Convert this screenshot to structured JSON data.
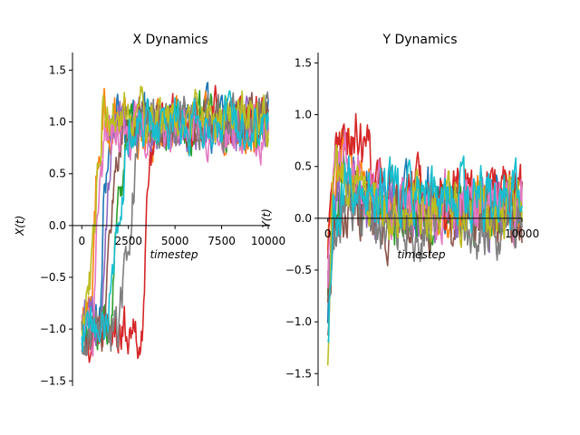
{
  "chart_data": [
    {
      "type": "line",
      "title": "X Dynamics",
      "xlabel": "timestep",
      "ylabel": "X(t)",
      "xlim": [
        -500,
        10000
      ],
      "ylim": [
        -1.55,
        1.67
      ],
      "x_ticks": [
        0,
        2500,
        5000,
        7500,
        10000
      ],
      "x_tick_labels": [
        "0",
        "2500",
        "5000",
        "7500",
        "10000"
      ],
      "y_ticks": [
        -1.5,
        -1.0,
        -0.5,
        0.0,
        0.5,
        1.0,
        1.5
      ],
      "y_tick_labels": [
        "−1.5",
        "−1.0",
        "−0.5",
        "0.0",
        "0.5",
        "1.0",
        "1.5"
      ],
      "grid": false,
      "n_points": 10000,
      "series": [
        {
          "color": "#1f77b4",
          "values": [
            [
              0,
              -1.0
            ],
            [
              1000,
              -0.95
            ],
            [
              1200,
              0.3
            ],
            [
              1600,
              1.0
            ],
            [
              3000,
              1.05
            ],
            [
              5000,
              1.0
            ],
            [
              7500,
              1.0
            ],
            [
              10000,
              1.0
            ]
          ]
        },
        {
          "color": "#ff7f0e",
          "values": [
            [
              0,
              -0.9
            ],
            [
              500,
              -0.8
            ],
            [
              800,
              0.5
            ],
            [
              1200,
              1.05
            ],
            [
              3000,
              0.95
            ],
            [
              5000,
              0.9
            ],
            [
              7500,
              0.95
            ],
            [
              10000,
              0.9
            ]
          ]
        },
        {
          "color": "#2ca02c",
          "values": [
            [
              0,
              -1.05
            ],
            [
              1500,
              -1.0
            ],
            [
              2000,
              0.2
            ],
            [
              2400,
              0.95
            ],
            [
              4000,
              1.0
            ],
            [
              6000,
              0.95
            ],
            [
              8000,
              1.0
            ],
            [
              10000,
              0.95
            ]
          ]
        },
        {
          "color": "#d62728",
          "values": [
            [
              0,
              -1.1
            ],
            [
              2500,
              -1.0
            ],
            [
              3300,
              -1.05
            ],
            [
              3600,
              0.6
            ],
            [
              4000,
              1.0
            ],
            [
              6000,
              1.0
            ],
            [
              8000,
              1.05
            ],
            [
              10000,
              1.0
            ]
          ]
        },
        {
          "color": "#9467bd",
          "values": [
            [
              0,
              -0.95
            ],
            [
              1000,
              -0.9
            ],
            [
              1400,
              0.4
            ],
            [
              1800,
              1.0
            ],
            [
              4000,
              0.95
            ],
            [
              6000,
              1.0
            ],
            [
              8000,
              0.95
            ],
            [
              10000,
              1.0
            ]
          ]
        },
        {
          "color": "#8c564b",
          "values": [
            [
              0,
              -1.0
            ],
            [
              1200,
              -0.95
            ],
            [
              1700,
              0.5
            ],
            [
              2200,
              1.05
            ],
            [
              4000,
              1.0
            ],
            [
              6000,
              1.0
            ],
            [
              8000,
              1.0
            ],
            [
              10000,
              1.05
            ]
          ]
        },
        {
          "color": "#e377c2",
          "values": [
            [
              0,
              -0.85
            ],
            [
              600,
              -0.9
            ],
            [
              900,
              0.2
            ],
            [
              1300,
              0.95
            ],
            [
              4000,
              0.9
            ],
            [
              6000,
              0.95
            ],
            [
              8000,
              0.9
            ],
            [
              10000,
              0.85
            ]
          ]
        },
        {
          "color": "#7f7f7f",
          "values": [
            [
              0,
              -1.05
            ],
            [
              2000,
              -1.0
            ],
            [
              2700,
              0.2
            ],
            [
              3100,
              1.0
            ],
            [
              5000,
              1.0
            ],
            [
              7000,
              1.0
            ],
            [
              9000,
              1.05
            ],
            [
              10000,
              1.0
            ]
          ]
        },
        {
          "color": "#bcbd22",
          "values": [
            [
              0,
              -0.9
            ],
            [
              500,
              -0.5
            ],
            [
              800,
              0.4
            ],
            [
              1100,
              1.1
            ],
            [
              3000,
              1.05
            ],
            [
              5000,
              1.05
            ],
            [
              7500,
              1.05
            ],
            [
              10000,
              1.0
            ]
          ]
        },
        {
          "color": "#17becf",
          "values": [
            [
              0,
              -1.0
            ],
            [
              1300,
              -1.0
            ],
            [
              1900,
              0.0
            ],
            [
              2500,
              0.9
            ],
            [
              5000,
              1.0
            ],
            [
              7500,
              1.0
            ],
            [
              10000,
              1.0
            ]
          ]
        }
      ]
    },
    {
      "type": "line",
      "title": "Y Dynamics",
      "xlabel": "timestep",
      "ylabel": "Y(t)",
      "xlim": [
        -500,
        10000
      ],
      "ylim": [
        -1.62,
        1.6
      ],
      "x_ticks": [
        0,
        10000
      ],
      "x_tick_labels": [
        "0",
        "10000"
      ],
      "y_ticks": [
        -1.5,
        -1.0,
        -0.5,
        0.0,
        0.5,
        1.0,
        1.5
      ],
      "y_tick_labels": [
        "−1.5",
        "−1.0",
        "−0.5",
        "0.0",
        "0.5",
        "1.0",
        "1.5"
      ],
      "grid": false,
      "n_points": 10000,
      "series": [
        {
          "color": "#1f77b4",
          "values": [
            [
              0,
              -0.8
            ],
            [
              300,
              0.3
            ],
            [
              800,
              0.5
            ],
            [
              2000,
              0.3
            ],
            [
              4000,
              0.15
            ],
            [
              6000,
              0.2
            ],
            [
              8000,
              0.25
            ],
            [
              10000,
              0.2
            ]
          ]
        },
        {
          "color": "#ff7f0e",
          "values": [
            [
              0,
              -0.5
            ],
            [
              400,
              0.6
            ],
            [
              900,
              0.8
            ],
            [
              2000,
              0.3
            ],
            [
              4000,
              0.1
            ],
            [
              6000,
              0.1
            ],
            [
              8000,
              0.15
            ],
            [
              10000,
              0.2
            ]
          ]
        },
        {
          "color": "#2ca02c",
          "values": [
            [
              0,
              -0.6
            ],
            [
              300,
              0.2
            ],
            [
              1000,
              0.3
            ],
            [
              3000,
              0.05
            ],
            [
              5000,
              0.0
            ],
            [
              7000,
              0.05
            ],
            [
              10000,
              0.05
            ]
          ]
        },
        {
          "color": "#d62728",
          "values": [
            [
              0,
              -0.4
            ],
            [
              500,
              0.6
            ],
            [
              1500,
              0.8
            ],
            [
              2500,
              0.4
            ],
            [
              4000,
              0.2
            ],
            [
              6000,
              0.2
            ],
            [
              8000,
              0.2
            ],
            [
              10000,
              0.25
            ]
          ]
        },
        {
          "color": "#9467bd",
          "values": [
            [
              0,
              -0.7
            ],
            [
              300,
              0.1
            ],
            [
              1000,
              0.2
            ],
            [
              3000,
              0.1
            ],
            [
              6000,
              0.05
            ],
            [
              10000,
              0.1
            ]
          ]
        },
        {
          "color": "#8c564b",
          "values": [
            [
              0,
              -0.9
            ],
            [
              300,
              0.0
            ],
            [
              1200,
              0.2
            ],
            [
              3000,
              0.0
            ],
            [
              6000,
              0.0
            ],
            [
              10000,
              0.0
            ]
          ]
        },
        {
          "color": "#e377c2",
          "values": [
            [
              0,
              -0.5
            ],
            [
              300,
              0.6
            ],
            [
              1000,
              0.6
            ],
            [
              2500,
              0.2
            ],
            [
              5000,
              0.1
            ],
            [
              8000,
              0.15
            ],
            [
              10000,
              0.2
            ]
          ]
        },
        {
          "color": "#7f7f7f",
          "values": [
            [
              0,
              -1.0
            ],
            [
              300,
              -0.1
            ],
            [
              1200,
              0.1
            ],
            [
              3000,
              -0.1
            ],
            [
              6000,
              -0.05
            ],
            [
              10000,
              -0.05
            ]
          ]
        },
        {
          "color": "#bcbd22",
          "values": [
            [
              0,
              -1.4
            ],
            [
              300,
              0.4
            ],
            [
              1000,
              0.4
            ],
            [
              3000,
              0.15
            ],
            [
              6000,
              0.1
            ],
            [
              10000,
              0.1
            ]
          ]
        },
        {
          "color": "#17becf",
          "values": [
            [
              0,
              -1.2
            ],
            [
              300,
              0.2
            ],
            [
              1000,
              0.3
            ],
            [
              3000,
              0.2
            ],
            [
              6000,
              0.2
            ],
            [
              10000,
              0.2
            ]
          ]
        }
      ]
    }
  ]
}
